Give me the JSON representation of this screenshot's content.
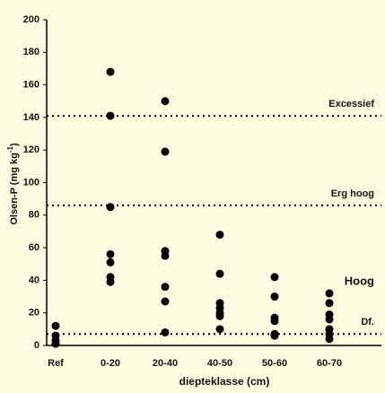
{
  "chart_data": {
    "type": "strip",
    "categories": [
      "Ref",
      "0-20",
      "20-40",
      "40-50",
      "50-60",
      "60-70"
    ],
    "values": [
      [
        12,
        6,
        3,
        1
      ],
      [
        168,
        141,
        85,
        56,
        51,
        42,
        39
      ],
      [
        150,
        119,
        58,
        55,
        36,
        27,
        8
      ],
      [
        68,
        44,
        26,
        23,
        20,
        18,
        10
      ],
      [
        42,
        30,
        17,
        15,
        7,
        6
      ],
      [
        32,
        26,
        19,
        16,
        10,
        7,
        4
      ]
    ],
    "color": "#000000",
    "ylim": [
      0,
      200
    ],
    "yticks": [
      0,
      20,
      40,
      60,
      80,
      100,
      120,
      140,
      160,
      180,
      200
    ],
    "ylabel": {
      "text": "Olsen-P (mg kg",
      "superscript": "-1",
      "suffix": ")"
    },
    "xlabel": "diepteklasse (cm)",
    "reference_lines": [
      {
        "value": 141,
        "label": "Excessief"
      },
      {
        "value": 86,
        "label": "Erg hoog"
      },
      {
        "value": 7,
        "label": "Df."
      }
    ],
    "annotations": [
      {
        "text": "Hoog",
        "value": 37
      }
    ]
  }
}
